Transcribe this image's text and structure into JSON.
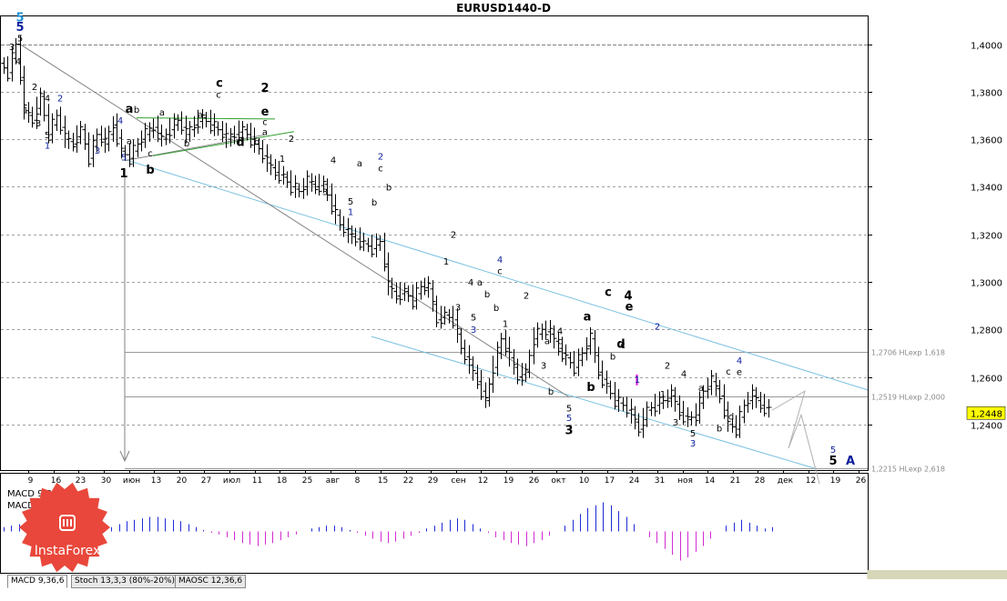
{
  "title": "EURUSD1440-D",
  "chart_data": {
    "type": "candlestick-ohlc",
    "symbol": "EURUSD",
    "timeframe": "1440 (Daily)",
    "ylim": [
      1.22,
      1.41
    ],
    "y_ticks": [
      "1,4000",
      "1,3800",
      "1,3600",
      "1,3400",
      "1,3200",
      "1,3000",
      "1,2800",
      "1,2600",
      "1,2400"
    ],
    "y_tick_values": [
      1.4,
      1.38,
      1.36,
      1.34,
      1.32,
      1.3,
      1.28,
      1.26,
      1.24
    ],
    "x_ticks": [
      "9",
      "16",
      "23",
      "30",
      "июн",
      "13",
      "20",
      "27",
      "июл",
      "11",
      "18",
      "25",
      "авг",
      "8",
      "15",
      "22",
      "29",
      "сен",
      "12",
      "19",
      "26",
      "окт",
      "10",
      "17",
      "24",
      "31",
      "ноя",
      "14",
      "21",
      "28",
      "дек",
      "12",
      "19",
      "26"
    ],
    "current_price": "1,2448",
    "levels": [
      {
        "value": 1.4,
        "label": ""
      },
      {
        "value": 1.2706,
        "label": "1,2706 HLexp 1,618"
      },
      {
        "value": 1.2519,
        "label": "1,2519 HLexp 2,000"
      },
      {
        "value": 1.2215,
        "label": "1,2215 HLexp 2,618"
      }
    ],
    "price_path": [
      1.392,
      1.388,
      1.4,
      1.372,
      1.368,
      1.378,
      1.362,
      1.37,
      1.36,
      1.358,
      1.364,
      1.352,
      1.362,
      1.358,
      1.366,
      1.355,
      1.352,
      1.358,
      1.362,
      1.365,
      1.36,
      1.364,
      1.368,
      1.362,
      1.366,
      1.369,
      1.366,
      1.364,
      1.36,
      1.362,
      1.364,
      1.36,
      1.356,
      1.35,
      1.346,
      1.344,
      1.34,
      1.338,
      1.342,
      1.34,
      1.341,
      1.332,
      1.324,
      1.32,
      1.318,
      1.316,
      1.314,
      1.317,
      1.298,
      1.294,
      1.296,
      1.292,
      1.298,
      1.297,
      1.284,
      1.286,
      1.284,
      1.272,
      1.265,
      1.258,
      1.25,
      1.264,
      1.276,
      1.268,
      1.26,
      1.262,
      1.276,
      1.28,
      1.278,
      1.272,
      1.268,
      1.264,
      1.27,
      1.276,
      1.262,
      1.256,
      1.25,
      1.248,
      1.244,
      1.238,
      1.246,
      1.248,
      1.25,
      1.252,
      1.245,
      1.242,
      1.244,
      1.254,
      1.258,
      1.252,
      1.24,
      1.238,
      1.248,
      1.252,
      1.248,
      1.246
    ],
    "forecast_path": [
      1.246,
      1.254,
      1.23,
      1.244,
      1.215
    ],
    "wave_labels": [
      {
        "text": "5",
        "x": 22,
        "y": 1.4096,
        "color": "#1e90d0",
        "bold": true
      },
      {
        "text": "5",
        "x": 22,
        "y": 1.4055,
        "color": "#0b1e9c",
        "bold": true
      },
      {
        "text": "5",
        "x": 22,
        "y": 1.4012,
        "color": "#000000"
      },
      {
        "text": "3",
        "x": 13,
        "y": 1.3975,
        "color": "#000000"
      },
      {
        "text": "4",
        "x": 20,
        "y": 1.3915,
        "color": "#000000"
      },
      {
        "text": "2",
        "x": 38,
        "y": 1.3808,
        "color": "#000000"
      },
      {
        "text": "1",
        "x": 28,
        "y": 1.371,
        "color": "#000000"
      },
      {
        "text": "4",
        "x": 52,
        "y": 1.376,
        "color": "#000000"
      },
      {
        "text": "2",
        "x": 66,
        "y": 1.376,
        "color": "#0b1e9c"
      },
      {
        "text": "3",
        "x": 42,
        "y": 1.3655,
        "color": "#000000"
      },
      {
        "text": "5",
        "x": 52,
        "y": 1.3605,
        "color": "#000000"
      },
      {
        "text": "1",
        "x": 52,
        "y": 1.356,
        "color": "#0b1e9c"
      },
      {
        "text": "3",
        "x": 107,
        "y": 1.354,
        "color": "#0b1e9c"
      },
      {
        "text": "4",
        "x": 132,
        "y": 1.3665,
        "color": "#0b1e9c"
      },
      {
        "text": "5",
        "x": 136,
        "y": 1.351,
        "color": "#0b1e9c"
      },
      {
        "text": "1",
        "x": 136,
        "y": 1.344,
        "color": "#000000",
        "bold": true
      },
      {
        "text": "a",
        "x": 142,
        "y": 1.3712,
        "color": "#000000",
        "bold": true
      },
      {
        "text": "b",
        "x": 150,
        "y": 1.3712,
        "color": "#000000"
      },
      {
        "text": "a",
        "x": 142,
        "y": 1.358,
        "color": "#000000"
      },
      {
        "text": "c",
        "x": 165,
        "y": 1.3528,
        "color": "#000000"
      },
      {
        "text": "b",
        "x": 165,
        "y": 1.3455,
        "color": "#000000",
        "bold": true
      },
      {
        "text": "a",
        "x": 178,
        "y": 1.37,
        "color": "#000000"
      },
      {
        "text": "b",
        "x": 205,
        "y": 1.357,
        "color": "#000000"
      },
      {
        "text": "a",
        "x": 220,
        "y": 1.369,
        "color": "#000000"
      },
      {
        "text": "c",
        "x": 241,
        "y": 1.382,
        "color": "#000000",
        "bold": true
      },
      {
        "text": "c",
        "x": 240,
        "y": 1.3775,
        "color": "#000000"
      },
      {
        "text": "d",
        "x": 264,
        "y": 1.3572,
        "color": "#000000",
        "bold": true
      },
      {
        "text": "2",
        "x": 291,
        "y": 1.38,
        "color": "#000000",
        "bold": true
      },
      {
        "text": "e",
        "x": 291,
        "y": 1.37,
        "color": "#000000",
        "bold": true
      },
      {
        "text": "c",
        "x": 291,
        "y": 1.366,
        "color": "#000000"
      },
      {
        "text": "a",
        "x": 291,
        "y": 1.3618,
        "color": "#000000"
      },
      {
        "text": "b",
        "x": 282,
        "y": 1.3575,
        "color": "#000000"
      },
      {
        "text": "2",
        "x": 320,
        "y": 1.359,
        "color": "#000000"
      },
      {
        "text": "1",
        "x": 310,
        "y": 1.3505,
        "color": "#000000"
      },
      {
        "text": "4",
        "x": 366,
        "y": 1.35,
        "color": "#000000"
      },
      {
        "text": "a",
        "x": 395,
        "y": 1.3485,
        "color": "#000000"
      },
      {
        "text": "2",
        "x": 418,
        "y": 1.3515,
        "color": "#0b1e9c"
      },
      {
        "text": "c",
        "x": 418,
        "y": 1.3465,
        "color": "#000000"
      },
      {
        "text": "3",
        "x": 357,
        "y": 1.3365,
        "color": "#000000"
      },
      {
        "text": "5",
        "x": 385,
        "y": 1.3325,
        "color": "#000000"
      },
      {
        "text": "1",
        "x": 385,
        "y": 1.3282,
        "color": "#0b1e9c"
      },
      {
        "text": "b",
        "x": 411,
        "y": 1.3322,
        "color": "#000000"
      },
      {
        "text": "b",
        "x": 427,
        "y": 1.3385,
        "color": "#000000"
      },
      {
        "text": "2",
        "x": 498,
        "y": 1.3185,
        "color": "#000000"
      },
      {
        "text": "1",
        "x": 490,
        "y": 1.3072,
        "color": "#000000"
      },
      {
        "text": "4",
        "x": 549,
        "y": 1.308,
        "color": "#0b1e9c"
      },
      {
        "text": "c",
        "x": 549,
        "y": 1.3032,
        "color": "#000000"
      },
      {
        "text": "4",
        "x": 517,
        "y": 1.2985,
        "color": "#000000"
      },
      {
        "text": "a",
        "x": 527,
        "y": 1.2985,
        "color": "#000000"
      },
      {
        "text": "b",
        "x": 535,
        "y": 1.2935,
        "color": "#000000"
      },
      {
        "text": "3",
        "x": 503,
        "y": 1.288,
        "color": "#000000"
      },
      {
        "text": "b",
        "x": 545,
        "y": 1.2878,
        "color": "#000000"
      },
      {
        "text": "5",
        "x": 520,
        "y": 1.2838,
        "color": "#000000"
      },
      {
        "text": "3",
        "x": 520,
        "y": 1.2785,
        "color": "#0b1e9c"
      },
      {
        "text": "1",
        "x": 555,
        "y": 1.281,
        "color": "#000000"
      },
      {
        "text": "2",
        "x": 578,
        "y": 1.293,
        "color": "#000000"
      },
      {
        "text": "4",
        "x": 615,
        "y": 1.278,
        "color": "#000000"
      },
      {
        "text": "c",
        "x": 615,
        "y": 1.2738,
        "color": "#000000"
      },
      {
        "text": "a",
        "x": 601,
        "y": 1.2738,
        "color": "#000000"
      },
      {
        "text": "3",
        "x": 597,
        "y": 1.2635,
        "color": "#000000"
      },
      {
        "text": "b",
        "x": 605,
        "y": 1.2525,
        "color": "#000000"
      },
      {
        "text": "5",
        "x": 625,
        "y": 1.2455,
        "color": "#000000"
      },
      {
        "text": "5",
        "x": 625,
        "y": 1.2415,
        "color": "#0b1e9c"
      },
      {
        "text": "3",
        "x": 625,
        "y": 1.236,
        "color": "#000000",
        "bold": true
      },
      {
        "text": "b",
        "x": 649,
        "y": 1.254,
        "color": "#000000",
        "bold": true
      },
      {
        "text": "a",
        "x": 645,
        "y": 1.2838,
        "color": "#000000",
        "bold": true
      },
      {
        "text": "c",
        "x": 668,
        "y": 1.294,
        "color": "#000000",
        "bold": true
      },
      {
        "text": "4",
        "x": 690,
        "y": 1.2925,
        "color": "#000000",
        "bold": true
      },
      {
        "text": "e",
        "x": 691,
        "y": 1.288,
        "color": "#000000",
        "bold": true
      },
      {
        "text": "d",
        "x": 682,
        "y": 1.2722,
        "color": "#000000",
        "bold": true
      },
      {
        "text": "c",
        "x": 684,
        "y": 1.272,
        "color": "#000000"
      },
      {
        "text": "b",
        "x": 673,
        "y": 1.2673,
        "color": "#000000"
      },
      {
        "text": "2",
        "x": 722,
        "y": 1.28,
        "color": "#0b1e9c"
      },
      {
        "text": "1",
        "x": 700,
        "y": 1.2575,
        "color": "#0b1e9c"
      },
      {
        "text": "2",
        "x": 733,
        "y": 1.2635,
        "color": "#000000"
      },
      {
        "text": "4",
        "x": 751,
        "y": 1.26,
        "color": "#000000"
      },
      {
        "text": "1",
        "x": 728,
        "y": 1.2515,
        "color": "#000000"
      },
      {
        "text": "a",
        "x": 770,
        "y": 1.254,
        "color": "#000000"
      },
      {
        "text": "3",
        "x": 742,
        "y": 1.2395,
        "color": "#000000"
      },
      {
        "text": "5",
        "x": 761,
        "y": 1.235,
        "color": "#000000"
      },
      {
        "text": "3",
        "x": 761,
        "y": 1.2308,
        "color": "#0b1e9c"
      },
      {
        "text": "b",
        "x": 790,
        "y": 1.237,
        "color": "#000000"
      },
      {
        "text": "c",
        "x": 800,
        "y": 1.261,
        "color": "#000000"
      },
      {
        "text": "4",
        "x": 812,
        "y": 1.2655,
        "color": "#0b1e9c"
      },
      {
        "text": "e",
        "x": 812,
        "y": 1.2608,
        "color": "#000000"
      },
      {
        "text": "d",
        "x": 803,
        "y": 1.242,
        "color": "#000000"
      },
      {
        "text": "5",
        "x": 915,
        "y": 1.228,
        "color": "#0b1e9c"
      },
      {
        "text": "5",
        "x": 915,
        "y": 1.223,
        "color": "#000000",
        "bold": true
      },
      {
        "text": "A",
        "x": 934,
        "y": 1.223,
        "color": "#0b1e9c",
        "bold": true
      }
    ],
    "indicators": {
      "macd_label_1": "MACD 9,36,6",
      "macd_label_2": "MACD =0,00",
      "histogram": [
        3,
        4,
        5,
        6,
        7,
        6,
        5,
        3,
        2,
        1,
        -1,
        0,
        1,
        2,
        3,
        5,
        7,
        8,
        9,
        10,
        10,
        9,
        8,
        7,
        5,
        3,
        1,
        -1,
        -2,
        -4,
        -6,
        -8,
        -9,
        -10,
        -9,
        -8,
        -6,
        -4,
        -2,
        0,
        2,
        3,
        4,
        4,
        3,
        1,
        -1,
        -3,
        -5,
        -7,
        -8,
        -7,
        -5,
        -3,
        -1,
        2,
        4,
        6,
        8,
        9,
        8,
        5,
        2,
        -1,
        -4,
        -6,
        -8,
        -9,
        -10,
        -8,
        -6,
        -3,
        0,
        4,
        8,
        12,
        16,
        18,
        20,
        18,
        14,
        10,
        5,
        0,
        -4,
        -8,
        -12,
        -16,
        -20,
        -18,
        -14,
        -10,
        -5,
        0,
        4,
        6,
        8,
        6,
        4,
        2,
        3
      ]
    },
    "tabs": [
      "MACD 9,36,6",
      "Stoch 13,3,3 (80%-20%)",
      "MAOSC 12,36,6"
    ],
    "logo_text": "InstaForex"
  }
}
